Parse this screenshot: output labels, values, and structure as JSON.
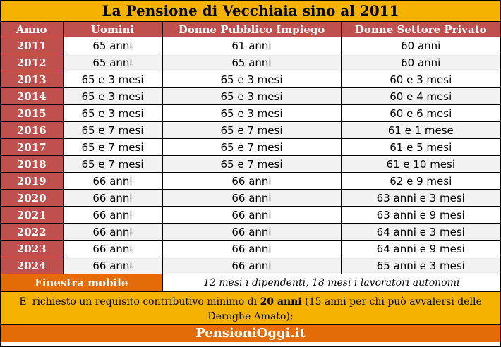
{
  "title": "La Pensione di Vecchiaia sino al 2011",
  "columns": [
    "Anno",
    "Uomini",
    "Donne Pubblico Impiego",
    "Donne Settore Privato"
  ],
  "rows": [
    {
      "year": "2011",
      "men": "65 anni",
      "public": "61 anni",
      "private": "60 anni"
    },
    {
      "year": "2012",
      "men": "65 anni",
      "public": "65 anni",
      "private": "60 anni"
    },
    {
      "year": "2013",
      "men": "65 e 3 mesi",
      "public": "65 e 3 mesi",
      "private": "60 e 3 mesi"
    },
    {
      "year": "2014",
      "men": "65 e 3 mesi",
      "public": "65 e 3 mesi",
      "private": "60 e 4 mesi"
    },
    {
      "year": "2015",
      "men": "65 e 3 mesi",
      "public": "65 e 3 mesi",
      "private": "60 e 6 mesi"
    },
    {
      "year": "2016",
      "men": "65 e 7 mesi",
      "public": "65 e 7 mesi",
      "private": "61 e 1 mese"
    },
    {
      "year": "2017",
      "men": "65 e 7 mesi",
      "public": "65 e 7 mesi",
      "private": "61 e 5 mesi"
    },
    {
      "year": "2018",
      "men": "65 e 7 mesi",
      "public": "65 e 7 mesi",
      "private": "61 e 10 mesi"
    },
    {
      "year": "2019",
      "men": "66 anni",
      "public": "66 anni",
      "private": "62 e 9 mesi"
    },
    {
      "year": "2020",
      "men": "66 anni",
      "public": "66 anni",
      "private": "63 anni e 3 mesi"
    },
    {
      "year": "2021",
      "men": "66 anni",
      "public": "66 anni",
      "private": "63 anni e 9 mesi"
    },
    {
      "year": "2022",
      "men": "66 anni",
      "public": "66 anni",
      "private": "64 anni e 3 mesi"
    },
    {
      "year": "2023",
      "men": "66 anni",
      "public": "66 anni",
      "private": "64 anni e 9 mesi"
    },
    {
      "year": "2024",
      "men": "66 anni",
      "public": "66 anni",
      "private": "65 anni e 3 mesi"
    }
  ],
  "finestra": {
    "label": "Finestra mobile",
    "value": "12 mesi i dipendenti, 18 mesi i lavoratori autonomi"
  },
  "note": {
    "before": "E' richiesto un requisito contributivo minimo di ",
    "bold": "20 anni",
    "after": " (15 anni per chi può avvalersi delle Deroghe Amato);"
  },
  "footer": "PensioniOggi.it",
  "colors": {
    "title_bg": "#f5b300",
    "header_bg": "#c0504d",
    "finestra_bg": "#e36c09",
    "footer_bg": "#e36c09"
  }
}
